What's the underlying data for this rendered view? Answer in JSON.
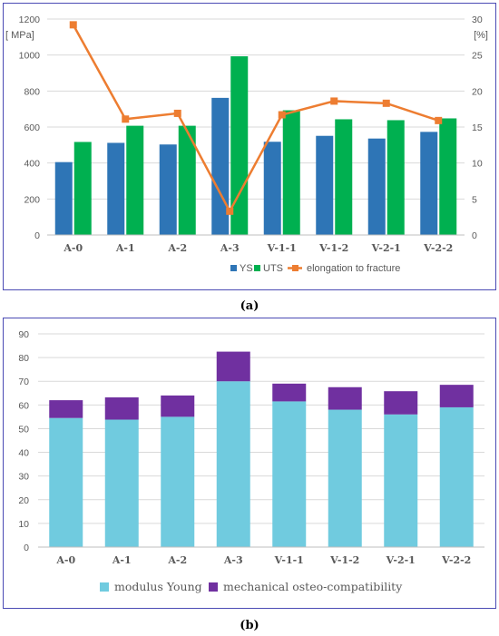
{
  "captions": {
    "a": "(a)",
    "b": "(b)"
  },
  "colors": {
    "ys": "#2e75b6",
    "uts": "#00b050",
    "elongation": "#ed7d31",
    "modulus": "#70cbdf",
    "osteo": "#7030a0",
    "grid": "#d9d9d9",
    "border": "#4b4bb4"
  },
  "chart_data": [
    {
      "type": "bar",
      "id": "a",
      "categories": [
        "A-0",
        "A-1",
        "A-2",
        "A-3",
        "V-1-1",
        "V-1-2",
        "V-2-1",
        "V-2-2"
      ],
      "series": [
        {
          "name": "YS",
          "type": "bar",
          "axis": "left",
          "values": [
            405,
            512,
            503,
            762,
            518,
            551,
            536,
            573
          ]
        },
        {
          "name": "UTS",
          "type": "bar",
          "axis": "left",
          "values": [
            517,
            607,
            607,
            993,
            693,
            643,
            638,
            648
          ]
        },
        {
          "name": "elongation to fracture",
          "type": "line",
          "axis": "right",
          "values": [
            29.2,
            16.1,
            16.9,
            3.3,
            16.7,
            18.6,
            18.3,
            15.9
          ]
        }
      ],
      "ylabel_left": "[ MPa]",
      "ylabel_right": "[%]",
      "ylim_left": [
        0,
        1200
      ],
      "ylim_right": [
        0,
        30
      ],
      "yticks_left": [
        "0",
        "200",
        "400",
        "600",
        "800",
        "1000",
        "1200"
      ],
      "yticks_right": [
        "0",
        "5",
        "10",
        "15",
        "20",
        "25",
        "30"
      ],
      "grid": true,
      "legend": "bottom"
    },
    {
      "type": "bar",
      "stacked": true,
      "id": "b",
      "categories": [
        "A-0",
        "A-1",
        "A-2",
        "A-3",
        "V-1-1",
        "V-1-2",
        "V-2-1",
        "V-2-2"
      ],
      "series": [
        {
          "name": "modulus Young",
          "values": [
            54.5,
            53.8,
            55.0,
            70.0,
            61.5,
            58.0,
            56.0,
            59.0
          ]
        },
        {
          "name": "mechanical osteo-compatibility",
          "values": [
            7.5,
            9.4,
            9.0,
            12.5,
            7.5,
            9.5,
            9.8,
            9.5
          ]
        }
      ],
      "ylim": [
        0,
        90
      ],
      "yticks": [
        "0",
        "10",
        "20",
        "30",
        "40",
        "50",
        "60",
        "70",
        "80",
        "90"
      ],
      "grid": true,
      "legend": "bottom"
    }
  ]
}
